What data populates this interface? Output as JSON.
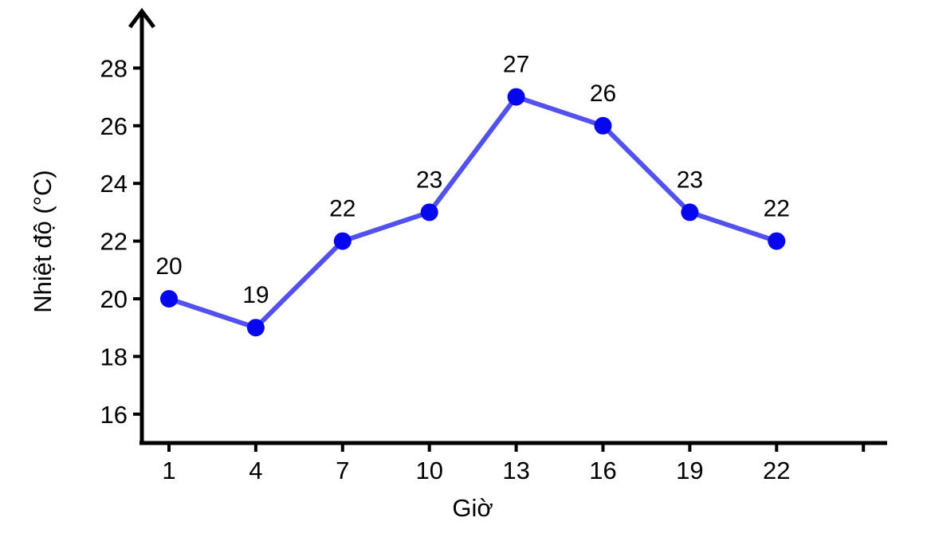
{
  "chart_data": {
    "type": "line",
    "title": "",
    "xlabel": "Giờ",
    "ylabel": "Nhiệt độ (°C)",
    "x": [
      1,
      4,
      7,
      10,
      13,
      16,
      19,
      22
    ],
    "values": [
      20,
      19,
      22,
      23,
      27,
      26,
      23,
      22
    ],
    "point_labels": [
      "20",
      "19",
      "22",
      "23",
      "27",
      "26",
      "23",
      "22"
    ],
    "x_tick_labels": [
      "1",
      "4",
      "7",
      "10",
      "13",
      "16",
      "19",
      "22"
    ],
    "y_ticks": [
      16,
      18,
      20,
      22,
      24,
      26,
      28
    ],
    "y_tick_labels": [
      "16",
      "18",
      "20",
      "22",
      "24",
      "26",
      "28"
    ],
    "unlabeled_x_tick": 25,
    "xlim": [
      0,
      26
    ],
    "ylim": [
      15,
      30
    ],
    "grid": false,
    "legend": "none",
    "line_color": "#5351ee",
    "marker_color": "#0707ee",
    "axis_color": "#000000",
    "text_color": "#000000"
  }
}
